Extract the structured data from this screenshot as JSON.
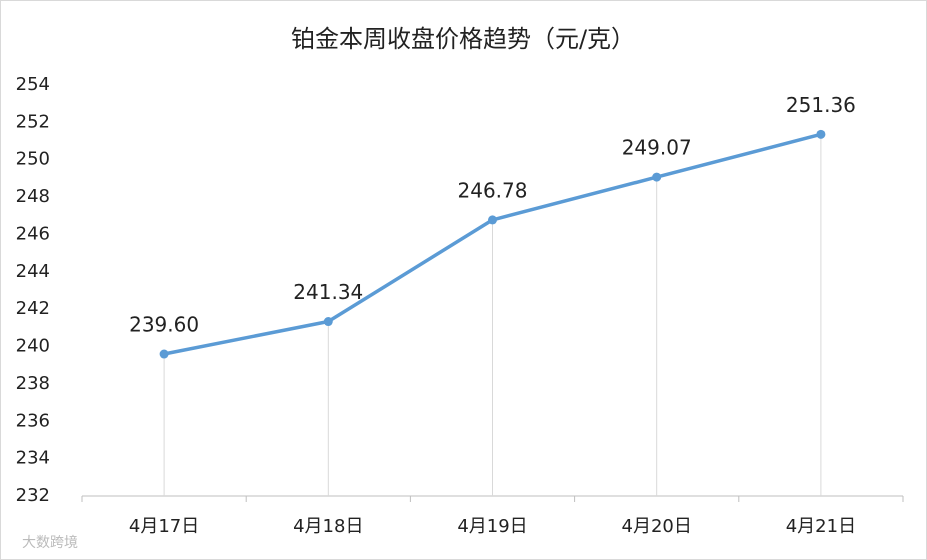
{
  "chart_data": {
    "type": "line",
    "title": "铂金本周收盘价格趋势（元/克）",
    "categories": [
      "4月17日",
      "4月18日",
      "4月19日",
      "4月20日",
      "4月21日"
    ],
    "values": [
      239.6,
      241.34,
      246.78,
      249.07,
      251.36
    ],
    "value_labels": [
      "239.60",
      "241.34",
      "246.78",
      "249.07",
      "251.36"
    ],
    "color": "#5b9bd5",
    "ylim": [
      232,
      254
    ],
    "yticks": [
      232,
      234,
      236,
      238,
      240,
      242,
      244,
      246,
      248,
      250,
      252,
      254
    ],
    "drop_lines": true,
    "watermark": "大数跨境"
  }
}
